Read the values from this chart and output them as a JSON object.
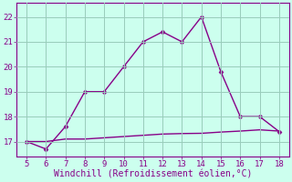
{
  "x": [
    5,
    6,
    7,
    8,
    9,
    10,
    11,
    12,
    13,
    14,
    15,
    16,
    17,
    18
  ],
  "y_main": [
    17.0,
    16.7,
    17.6,
    19.0,
    19.0,
    20.0,
    21.0,
    21.4,
    21.0,
    22.0,
    19.8,
    18.0,
    18.0,
    17.4
  ],
  "y_flat": [
    17.0,
    17.0,
    17.1,
    17.1,
    17.15,
    17.2,
    17.25,
    17.3,
    17.32,
    17.33,
    17.38,
    17.42,
    17.47,
    17.42
  ],
  "line_color": "#880088",
  "bg_color": "#ccffee",
  "grid_color": "#99ccbb",
  "text_color": "#880088",
  "xlabel": "Windchill (Refroidissement éolien,°C)",
  "xlim": [
    4.5,
    18.5
  ],
  "ylim": [
    16.4,
    22.55
  ],
  "yticks": [
    17,
    18,
    19,
    20,
    21,
    22
  ],
  "xticks": [
    5,
    6,
    7,
    8,
    9,
    10,
    11,
    12,
    13,
    14,
    15,
    16,
    17,
    18
  ],
  "marker": "D",
  "markersize": 2.5,
  "linewidth": 1.0,
  "font_size": 6.5,
  "xlabel_size": 7.0
}
